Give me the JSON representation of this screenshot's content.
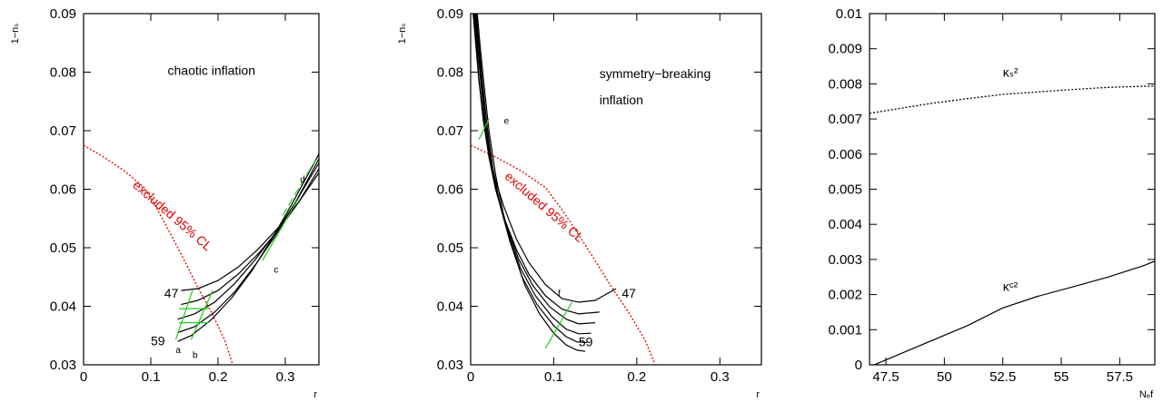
{
  "chart_data": [
    {
      "id": "panel-1",
      "type": "line",
      "xlabel": "r",
      "ylabel": "1−nₛ",
      "xlim": [
        0,
        0.35
      ],
      "ylim": [
        0.03,
        0.09
      ],
      "xticks": [
        0,
        0.1,
        0.2,
        0.3
      ],
      "xtick_labels": [
        "0",
        "0.1",
        "0.2",
        "0.3"
      ],
      "yticks": [
        0.03,
        0.04,
        0.05,
        0.06,
        0.07,
        0.08,
        0.09
      ],
      "ytick_labels": [
        "0.03",
        "0.04",
        "0.05",
        "0.06",
        "0.07",
        "0.08",
        "0.09"
      ],
      "annotations": [
        {
          "text": "chaotic inflation",
          "x": 0.125,
          "y": 0.0795,
          "size": "large"
        },
        {
          "text": "excluded 95% CL",
          "x": 0.072,
          "y": 0.0605,
          "angle": 41,
          "color": "#e00000",
          "size": "large"
        },
        {
          "text": "47",
          "x": 0.12,
          "y": 0.0415,
          "size": "large"
        },
        {
          "text": "59",
          "x": 0.1,
          "y": 0.0333,
          "size": "large"
        },
        {
          "text": "a",
          "x": 0.137,
          "y": 0.032,
          "size": "small"
        },
        {
          "text": "b",
          "x": 0.162,
          "y": 0.0312,
          "size": "small"
        },
        {
          "text": "c",
          "x": 0.283,
          "y": 0.0457,
          "size": "small"
        },
        {
          "text": "d",
          "x": 0.322,
          "y": 0.0612,
          "size": "small"
        }
      ],
      "series": [
        {
          "style": "dotted",
          "color": "#e00000",
          "x": [
            0,
            0.03,
            0.06,
            0.09,
            0.11,
            0.13,
            0.15,
            0.17,
            0.19,
            0.21,
            0.222
          ],
          "y": [
            0.0675,
            0.0655,
            0.0632,
            0.0603,
            0.0565,
            0.0522,
            0.0478,
            0.0432,
            0.039,
            0.0342,
            0.03
          ]
        },
        {
          "style": "solid",
          "color": "#000000",
          "x": [
            0.145,
            0.17,
            0.2,
            0.23,
            0.26,
            0.29,
            0.32,
            0.35
          ],
          "y": [
            0.0427,
            0.043,
            0.0444,
            0.0467,
            0.0498,
            0.0535,
            0.0578,
            0.0628
          ]
        },
        {
          "style": "solid",
          "color": "#000000",
          "x": [
            0.145,
            0.17,
            0.2,
            0.23,
            0.26,
            0.29,
            0.32,
            0.35
          ],
          "y": [
            0.0403,
            0.041,
            0.0427,
            0.0455,
            0.049,
            0.053,
            0.0578,
            0.0635
          ]
        },
        {
          "style": "solid",
          "color": "#000000",
          "x": [
            0.14,
            0.165,
            0.195,
            0.225,
            0.255,
            0.285,
            0.315,
            0.35
          ],
          "y": [
            0.0378,
            0.0387,
            0.0407,
            0.0439,
            0.0479,
            0.0525,
            0.0577,
            0.0645
          ]
        },
        {
          "style": "solid",
          "color": "#000000",
          "x": [
            0.14,
            0.165,
            0.195,
            0.225,
            0.255,
            0.285,
            0.315,
            0.35
          ],
          "y": [
            0.0355,
            0.0365,
            0.039,
            0.0425,
            0.047,
            0.052,
            0.0577,
            0.0652
          ]
        },
        {
          "style": "solid",
          "color": "#000000",
          "x": [
            0.14,
            0.16,
            0.19,
            0.22,
            0.25,
            0.28,
            0.31,
            0.35
          ],
          "y": [
            0.034,
            0.035,
            0.0377,
            0.0414,
            0.046,
            0.0515,
            0.0575,
            0.066
          ]
        },
        {
          "style": "solid",
          "color": "#22cc22",
          "x": [
            0.137,
            0.162
          ],
          "y": [
            0.0343,
            0.0427
          ]
        },
        {
          "style": "solid",
          "color": "#22cc22",
          "x": [
            0.16,
            0.192
          ],
          "y": [
            0.0343,
            0.0427
          ]
        },
        {
          "style": "solid",
          "color": "#22cc22",
          "x": [
            0.266,
            0.32
          ],
          "y": [
            0.0478,
            0.0585
          ]
        },
        {
          "style": "dashed",
          "color": "#22cc22",
          "x": [
            0.296,
            0.345
          ],
          "y": [
            0.0555,
            0.065
          ]
        },
        {
          "style": "solid",
          "color": "#22cc22",
          "x": [
            0.142,
            0.186
          ],
          "y": [
            0.0372,
            0.0372
          ]
        },
        {
          "style": "solid",
          "color": "#22cc22",
          "x": [
            0.142,
            0.186
          ],
          "y": [
            0.0396,
            0.0396
          ]
        }
      ]
    },
    {
      "id": "panel-2",
      "type": "line",
      "xlabel": "r",
      "ylabel": "1−nₛ",
      "xlim": [
        0,
        0.35
      ],
      "ylim": [
        0.03,
        0.09
      ],
      "xticks": [
        0,
        0.1,
        0.2,
        0.3
      ],
      "xtick_labels": [
        "0",
        "0.1",
        "0.2",
        "0.3"
      ],
      "yticks": [
        0.03,
        0.04,
        0.05,
        0.06,
        0.07,
        0.08,
        0.09
      ],
      "ytick_labels": [
        "0.03",
        "0.04",
        "0.05",
        "0.06",
        "0.07",
        "0.08",
        "0.09"
      ],
      "annotations": [
        {
          "text": "symmetry−breaking",
          "x": 0.155,
          "y": 0.079,
          "size": "large"
        },
        {
          "text": "inflation",
          "x": 0.155,
          "y": 0.0745,
          "size": "large"
        },
        {
          "text": "excluded 95% CL",
          "x": 0.04,
          "y": 0.062,
          "angle": 41,
          "color": "#e00000",
          "size": "large"
        },
        {
          "text": "e",
          "x": 0.04,
          "y": 0.0712,
          "size": "small"
        },
        {
          "text": "f",
          "x": 0.105,
          "y": 0.0417,
          "size": "small"
        },
        {
          "text": "47",
          "x": 0.182,
          "y": 0.0415,
          "size": "large"
        },
        {
          "text": "59",
          "x": 0.13,
          "y": 0.0332,
          "size": "large"
        }
      ],
      "series": [
        {
          "style": "dotted",
          "color": "#e00000",
          "x": [
            0,
            0.03,
            0.06,
            0.09,
            0.11,
            0.13,
            0.15,
            0.17,
            0.19,
            0.21,
            0.222
          ],
          "y": [
            0.0675,
            0.0655,
            0.0632,
            0.0603,
            0.0565,
            0.0522,
            0.0478,
            0.0432,
            0.039,
            0.0342,
            0.03
          ]
        },
        {
          "style": "solid",
          "color": "#000000",
          "x": [
            0.003,
            0.006,
            0.01,
            0.015,
            0.022,
            0.03,
            0.04,
            0.055,
            0.07,
            0.09,
            0.11,
            0.13,
            0.15,
            0.175
          ],
          "y": [
            0.09,
            0.085,
            0.0785,
            0.0725,
            0.0665,
            0.0615,
            0.057,
            0.0515,
            0.0475,
            0.0437,
            0.0413,
            0.0407,
            0.041,
            0.043
          ]
        },
        {
          "style": "solid",
          "color": "#000000",
          "x": [
            0.004,
            0.007,
            0.01,
            0.015,
            0.022,
            0.03,
            0.04,
            0.055,
            0.07,
            0.09,
            0.11,
            0.13,
            0.155
          ],
          "y": [
            0.09,
            0.085,
            0.079,
            0.072,
            0.0655,
            0.06,
            0.0552,
            0.0497,
            0.0455,
            0.0418,
            0.0395,
            0.0387,
            0.039
          ]
        },
        {
          "style": "solid",
          "color": "#000000",
          "x": [
            0.005,
            0.008,
            0.012,
            0.017,
            0.024,
            0.032,
            0.043,
            0.058,
            0.075,
            0.095,
            0.115,
            0.13,
            0.15
          ],
          "y": [
            0.09,
            0.085,
            0.0785,
            0.0715,
            0.0648,
            0.059,
            0.0538,
            0.048,
            0.0435,
            0.0399,
            0.0378,
            0.037,
            0.0372
          ]
        },
        {
          "style": "solid",
          "color": "#000000",
          "x": [
            0.006,
            0.009,
            0.013,
            0.018,
            0.025,
            0.034,
            0.045,
            0.06,
            0.078,
            0.098,
            0.115,
            0.13,
            0.145
          ],
          "y": [
            0.09,
            0.085,
            0.0785,
            0.0712,
            0.064,
            0.058,
            0.0525,
            0.0465,
            0.0418,
            0.0382,
            0.0361,
            0.0353,
            0.0354
          ]
        },
        {
          "style": "solid",
          "color": "#000000",
          "x": [
            0.007,
            0.01,
            0.014,
            0.02,
            0.027,
            0.036,
            0.047,
            0.062,
            0.08,
            0.1,
            0.115,
            0.128,
            0.14
          ],
          "y": [
            0.09,
            0.085,
            0.0785,
            0.0705,
            0.0632,
            0.057,
            0.0512,
            0.045,
            0.0403,
            0.0367,
            0.0348,
            0.0339,
            0.0338
          ]
        },
        {
          "style": "solid",
          "color": "#000000",
          "x": [
            0.008,
            0.011,
            0.016,
            0.022,
            0.03,
            0.039,
            0.05,
            0.065,
            0.083,
            0.1,
            0.115,
            0.128,
            0.138
          ],
          "y": [
            0.09,
            0.085,
            0.078,
            0.07,
            0.0625,
            0.056,
            0.05,
            0.0437,
            0.0387,
            0.0354,
            0.0334,
            0.0325,
            0.0323
          ]
        },
        {
          "style": "solid",
          "color": "#22cc22",
          "x": [
            0.01,
            0.022
          ],
          "y": [
            0.0685,
            0.072
          ]
        },
        {
          "style": "solid",
          "color": "#22cc22",
          "x": [
            0.09,
            0.122
          ],
          "y": [
            0.0328,
            0.0407
          ]
        }
      ]
    },
    {
      "id": "panel-3",
      "type": "line",
      "xlabel": "Nₑf",
      "ylabel": "",
      "xlim": [
        46.8,
        59
      ],
      "ylim": [
        0,
        0.01
      ],
      "xticks": [
        47.5,
        50,
        52.5,
        55,
        57.5
      ],
      "xtick_labels": [
        "47.5",
        "50",
        "52.5",
        "55",
        "57.5"
      ],
      "yticks": [
        0,
        0.001,
        0.002,
        0.003,
        0.004,
        0.005,
        0.006,
        0.007,
        0.008,
        0.009,
        0.01
      ],
      "ytick_labels": [
        "0",
        "0.001",
        "0.002",
        "0.003",
        "0.004",
        "0.005",
        "0.006",
        "0.007",
        "0.008",
        "0.009",
        "0.01"
      ],
      "annotations": [
        {
          "text": "κₛ²",
          "x": 52.5,
          "y": 0.0082,
          "size": "large"
        },
        {
          "text": "κᶜ²",
          "x": 52.5,
          "y": 0.0021,
          "size": "large"
        }
      ],
      "series": [
        {
          "name": "κₛ²",
          "style": "dotted",
          "color": "#000000",
          "x": [
            46.8,
            48,
            49.5,
            51,
            52.5,
            54,
            55.5,
            57,
            58.5,
            59
          ],
          "y": [
            0.00716,
            0.00729,
            0.00745,
            0.00758,
            0.0077,
            0.00777,
            0.00784,
            0.0079,
            0.00793,
            0.00794
          ]
        },
        {
          "name": "κᶜ²",
          "style": "solid",
          "color": "#000000",
          "x": [
            47.0,
            48,
            49.5,
            51,
            52.5,
            54,
            55.5,
            57,
            58.5,
            59
          ],
          "y": [
            0.0,
            0.00028,
            0.0007,
            0.00112,
            0.00162,
            0.00195,
            0.00222,
            0.0025,
            0.00282,
            0.00295
          ]
        }
      ]
    }
  ]
}
